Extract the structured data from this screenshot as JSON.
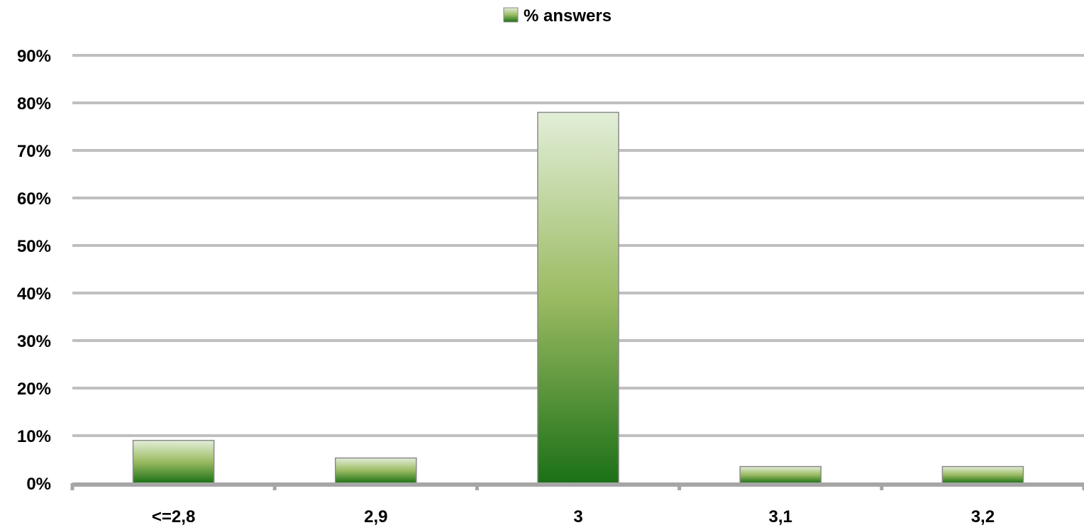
{
  "chart_data": {
    "type": "bar",
    "title": "",
    "xlabel": "",
    "ylabel": "",
    "categories": [
      "<=2,8",
      "2,9",
      "3",
      "3,1",
      "3,2"
    ],
    "series": [
      {
        "name": "% answers",
        "values": [
          9,
          5.3,
          78,
          3.5,
          3.5
        ]
      }
    ],
    "ylim": [
      0,
      90
    ],
    "yticks": [
      0,
      10,
      20,
      30,
      40,
      50,
      60,
      70,
      80,
      90
    ],
    "ytick_labels": [
      "0%",
      "10%",
      "20%",
      "30%",
      "40%",
      "50%",
      "60%",
      "70%",
      "80%",
      "90%"
    ],
    "grid": true,
    "legend_position": "top-center",
    "colors": {
      "bar_top": "#e2eed8",
      "bar_mid": "#9bbb62",
      "bar_bottom": "#1b7016",
      "bar_stroke": "#8a8a8a",
      "grid": "#bfbfbf",
      "axis": "#a6a6a6"
    }
  }
}
